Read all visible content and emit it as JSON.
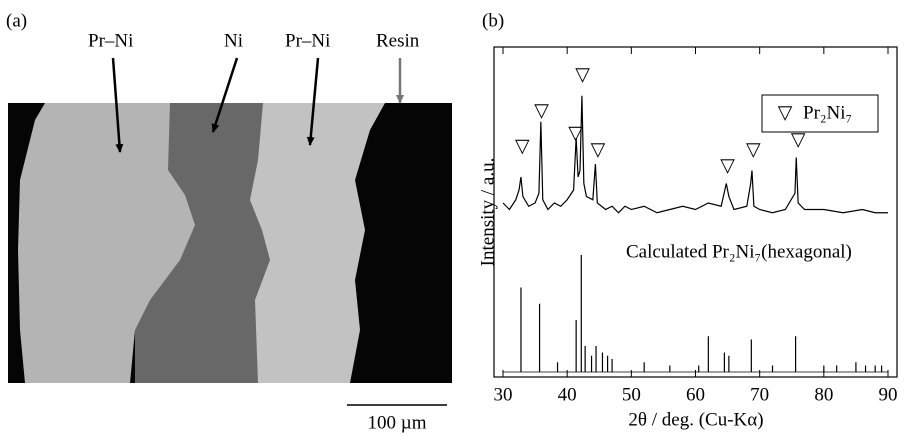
{
  "figure_a": {
    "label": "(a)",
    "annotations": [
      "Pr–Ni",
      "Ni",
      "Pr–Ni",
      "Resin"
    ],
    "scale_bar": "100 µm"
  },
  "chart_data": {
    "type": "line",
    "label": "(b)",
    "xlabel": "2θ / deg. (Cu-Kα)",
    "ylabel": "Intensity / a.u.",
    "xlim": [
      30,
      90
    ],
    "xticks": [
      30,
      40,
      50,
      60,
      70,
      80,
      90
    ],
    "ylim": [
      0,
      100
    ],
    "series": [
      {
        "color": "#000000",
        "x": [
          30,
          31,
          32,
          32.5,
          32.8,
          33.1,
          34,
          35,
          35.6,
          35.9,
          36.2,
          37,
          38,
          39,
          40,
          41,
          41.4,
          41.7,
          42.0,
          42.3,
          42.6,
          43,
          44,
          44.4,
          44.7,
          46,
          47,
          48,
          49,
          50,
          52,
          54,
          56,
          58,
          60,
          62,
          64,
          64.8,
          65.2,
          66,
          68,
          68.6,
          68.8,
          69.1,
          70,
          72,
          74,
          75.5,
          75.7,
          76,
          77,
          80,
          83,
          86,
          88,
          90
        ],
        "values": [
          52,
          50,
          53,
          56,
          60,
          54,
          51,
          52,
          55,
          77,
          53,
          50,
          52,
          51,
          53,
          56,
          72,
          60,
          62,
          85,
          58,
          54,
          53,
          64,
          52,
          50,
          51,
          49,
          51,
          50,
          51,
          49,
          50,
          51,
          50,
          52,
          51,
          58,
          54,
          50,
          51,
          58,
          62,
          51,
          50,
          49,
          50,
          55,
          66,
          52,
          50,
          50,
          49,
          50,
          49,
          49
        ]
      },
      {
        "name": "Calculated Pr₂Ni₇(hexagonal)",
        "style": "sticks",
        "color": "#000000",
        "x": [
          32.8,
          35.7,
          38.5,
          41.4,
          42.2,
          42.8,
          43.8,
          44.5,
          45.5,
          46.3,
          47,
          52,
          56,
          60.5,
          62,
          64.5,
          65.2,
          68.7,
          72,
          75.6,
          80,
          82,
          85,
          86.5,
          88,
          89
        ],
        "values": [
          26,
          21,
          3,
          16,
          36,
          8,
          5,
          8,
          6,
          5,
          4,
          3,
          2,
          2,
          11,
          6,
          5,
          10,
          2,
          11,
          2,
          2,
          3,
          2,
          2,
          2
        ]
      }
    ],
    "markers": {
      "name": "Pr₂Ni₇",
      "symbol": "▽",
      "x": [
        33,
        36,
        41.3,
        42.4,
        44.8,
        65,
        69,
        76
      ],
      "values": [
        69,
        80,
        73,
        91,
        68,
        63,
        68,
        71
      ]
    }
  }
}
